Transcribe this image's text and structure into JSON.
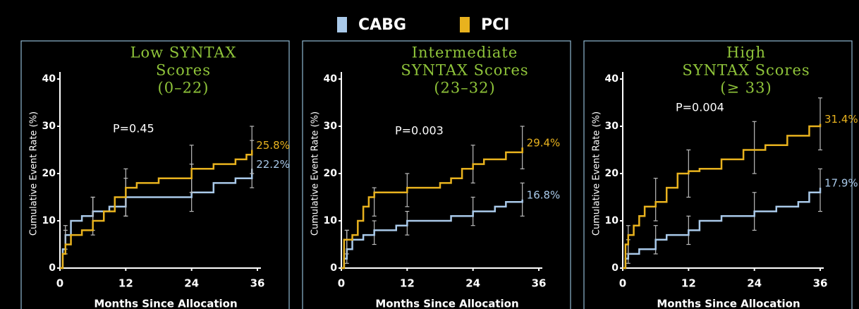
{
  "chart_data": [
    {
      "type": "line",
      "step": true,
      "title": [
        "Low SYNTAX",
        "Scores",
        "(0–22)"
      ],
      "annotation": "P=0.45",
      "ylabel": "Cumulative Event Rate (%)",
      "xlabel": "Months Since Allocation",
      "xlim": [
        0,
        36
      ],
      "ylim": [
        0,
        40
      ],
      "xticks": [
        0,
        12,
        24,
        36
      ],
      "yticks": [
        0,
        10,
        20,
        30,
        40
      ],
      "series": [
        {
          "name": "CABG",
          "color": "#a9c9e9",
          "label": "22.2%",
          "x": [
            0,
            0.5,
            1,
            2,
            4,
            6,
            9,
            12,
            20,
            24,
            28,
            32,
            35
          ],
          "values": [
            0,
            4,
            7,
            10,
            11,
            12,
            13,
            15,
            15,
            16,
            18,
            19,
            21
          ],
          "errors": {
            "x": [
              1,
              6,
              12,
              24,
              35
            ],
            "low": [
              4,
              8,
              11,
              12,
              17
            ],
            "high": [
              9,
              15,
              19,
              22,
              27
            ]
          }
        },
        {
          "name": "PCI",
          "color": "#e8b21e",
          "label": "25.8%",
          "x": [
            0,
            0.5,
            1,
            2,
            4,
            6,
            8,
            10,
            12,
            14,
            18,
            24,
            28,
            32,
            34,
            35
          ],
          "values": [
            0,
            3,
            5,
            7,
            8,
            10,
            12,
            15,
            17,
            18,
            19,
            21,
            22,
            23,
            24,
            25
          ],
          "errors": {
            "x": [
              1,
              6,
              12,
              24,
              35
            ],
            "low": [
              3,
              7,
              11,
              16,
              20
            ],
            "high": [
              8,
              15,
              21,
              26,
              30
            ]
          }
        }
      ]
    },
    {
      "type": "line",
      "step": true,
      "title": [
        "Intermediate",
        "SYNTAX Scores",
        "(23–32)"
      ],
      "annotation": "P=0.003",
      "ylabel": "Cumulative Event Rate (%)",
      "xlabel": "Months Since Allocation",
      "xlim": [
        0,
        36
      ],
      "ylim": [
        0,
        40
      ],
      "xticks": [
        0,
        12,
        24,
        36
      ],
      "yticks": [
        0,
        10,
        20,
        30,
        40
      ],
      "series": [
        {
          "name": "CABG",
          "color": "#a9c9e9",
          "label": "16.8%",
          "x": [
            0,
            0.5,
            1,
            2,
            4,
            6,
            10,
            12,
            16,
            20,
            24,
            28,
            30,
            33
          ],
          "values": [
            0,
            2,
            4,
            6,
            7,
            8,
            9,
            10,
            10,
            11,
            12,
            13,
            14,
            14.5
          ],
          "errors": {
            "x": [
              1,
              6,
              12,
              24,
              33
            ],
            "low": [
              1,
              5,
              7,
              9,
              11
            ],
            "high": [
              8,
              10,
              12,
              15,
              18
            ]
          }
        },
        {
          "name": "PCI",
          "color": "#e8b21e",
          "label": "29.4%",
          "x": [
            0,
            0.5,
            2,
            3,
            4,
            5,
            6,
            12,
            18,
            20,
            22,
            24,
            26,
            30,
            33
          ],
          "values": [
            0,
            6,
            7,
            10,
            13,
            15,
            16,
            17,
            18,
            19,
            21,
            22,
            23,
            24.5,
            25.5
          ],
          "errors": {
            "x": [
              1,
              6,
              12,
              24,
              33
            ],
            "low": [
              3,
              11,
              13,
              18,
              21
            ],
            "high": [
              8,
              17,
              20,
              26,
              30
            ]
          }
        }
      ]
    },
    {
      "type": "line",
      "step": true,
      "title": [
        "High",
        "SYNTAX Scores",
        "(≥ 33)"
      ],
      "annotation": "P=0.004",
      "ylabel": "Cumulative Event Rate (%)",
      "xlabel": "Months Since Allocation",
      "xlim": [
        0,
        36
      ],
      "ylim": [
        0,
        40
      ],
      "xticks": [
        0,
        12,
        24,
        36
      ],
      "yticks": [
        0,
        10,
        20,
        30,
        40
      ],
      "series": [
        {
          "name": "CABG",
          "color": "#a9c9e9",
          "label": "17.9%",
          "x": [
            0,
            0.5,
            1,
            3,
            6,
            8,
            12,
            14,
            18,
            24,
            28,
            32,
            34,
            36
          ],
          "values": [
            0,
            2,
            3,
            4,
            6,
            7,
            8,
            10,
            11,
            12,
            13,
            14,
            16,
            17
          ],
          "errors": {
            "x": [
              1,
              6,
              12,
              24,
              36
            ],
            "low": [
              1,
              3,
              5,
              8,
              12
            ],
            "high": [
              6,
              9,
              11,
              16,
              21
            ]
          }
        },
        {
          "name": "PCI",
          "color": "#e8b21e",
          "label": "31.4%",
          "x": [
            0,
            0.5,
            1,
            2,
            3,
            4,
            6,
            8,
            10,
            12,
            14,
            18,
            22,
            26,
            30,
            34,
            36
          ],
          "values": [
            0,
            5,
            7,
            9,
            11,
            13,
            14,
            17,
            20,
            20.5,
            21,
            23,
            25,
            26,
            28,
            30,
            30.5
          ],
          "errors": {
            "x": [
              1,
              6,
              12,
              24,
              36
            ],
            "low": [
              3,
              10,
              15,
              20,
              25
            ],
            "high": [
              9,
              19,
              25,
              31,
              36
            ]
          }
        }
      ]
    }
  ]
}
